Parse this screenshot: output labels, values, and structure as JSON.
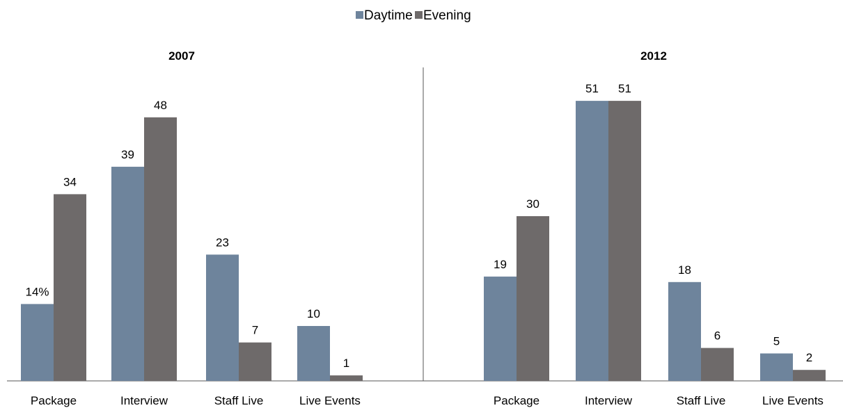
{
  "chart_data": {
    "type": "bar",
    "legend": [
      {
        "name": "Daytime",
        "color": "#6e849c"
      },
      {
        "name": "Evening",
        "color": "#6e6a6a"
      }
    ],
    "legend_position": "top-center",
    "panels": [
      {
        "title": "2007",
        "categories": [
          "Package",
          "Interview",
          "Staff Live",
          "Live Events"
        ],
        "series": [
          {
            "name": "Daytime",
            "values": [
              14,
              39,
              23,
              10
            ],
            "labels": [
              "14%",
              "39",
              "23",
              "10"
            ]
          },
          {
            "name": "Evening",
            "values": [
              34,
              48,
              7,
              1
            ],
            "labels": [
              "34",
              "48",
              "7",
              "1"
            ]
          }
        ]
      },
      {
        "title": "2012",
        "categories": [
          "Package",
          "Interview",
          "Staff Live",
          "Live Events"
        ],
        "series": [
          {
            "name": "Daytime",
            "values": [
              19,
              51,
              18,
              5
            ],
            "labels": [
              "19",
              "51",
              "18",
              "5"
            ]
          },
          {
            "name": "Evening",
            "values": [
              30,
              51,
              6,
              2
            ],
            "labels": [
              "30",
              "51",
              "6",
              "2"
            ]
          }
        ]
      }
    ],
    "ylim": [
      0,
      60
    ],
    "grid": false
  }
}
